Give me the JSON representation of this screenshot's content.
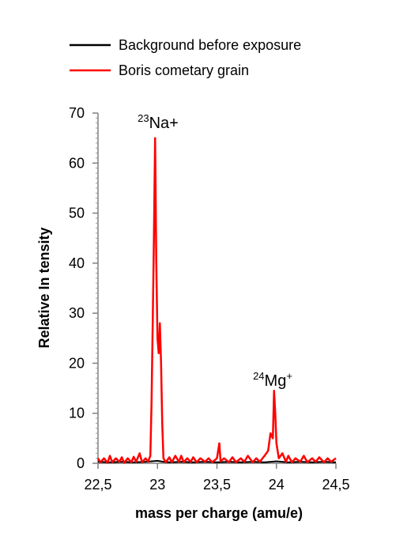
{
  "chart_data": {
    "type": "line",
    "xlabel": "mass per charge (amu/e)",
    "ylabel": "Relative In tensity",
    "xlim": [
      22.5,
      24.5
    ],
    "ylim": [
      0,
      70
    ],
    "x_ticks": [
      22.5,
      23,
      23.5,
      24,
      24.5
    ],
    "x_tick_labels": [
      "22,5",
      "23",
      "23,5",
      "24",
      "24,5"
    ],
    "y_ticks": [
      0,
      10,
      20,
      30,
      40,
      50,
      60,
      70
    ],
    "y_tick_labels": [
      "0",
      "10",
      "20",
      "30",
      "40",
      "50",
      "60",
      "70"
    ],
    "grid": false,
    "legend_position": "top",
    "annotations": [
      {
        "sup": "23",
        "text": "Na+",
        "x": 23.0,
        "y": 66
      },
      {
        "sup": "24",
        "text": "Mg",
        "sup_after": "+",
        "x": 23.98,
        "y": 15
      }
    ],
    "series": [
      {
        "name": "Background before exposure",
        "color": "#000000",
        "points": [
          [
            22.5,
            0.3
          ],
          [
            22.6,
            0.2
          ],
          [
            22.7,
            0.3
          ],
          [
            22.8,
            0.2
          ],
          [
            22.9,
            0.3
          ],
          [
            23.0,
            0.5
          ],
          [
            23.05,
            0.3
          ],
          [
            23.1,
            0.2
          ],
          [
            23.2,
            0.3
          ],
          [
            23.3,
            0.2
          ],
          [
            23.4,
            0.3
          ],
          [
            23.5,
            0.2
          ],
          [
            23.6,
            0.3
          ],
          [
            23.7,
            0.2
          ],
          [
            23.8,
            0.3
          ],
          [
            23.9,
            0.2
          ],
          [
            24.0,
            0.4
          ],
          [
            24.1,
            0.2
          ],
          [
            24.2,
            0.3
          ],
          [
            24.3,
            0.2
          ],
          [
            24.4,
            0.3
          ],
          [
            24.5,
            0.2
          ]
        ]
      },
      {
        "name": "Boris cometary grain",
        "color": "#ff0000",
        "points": [
          [
            22.5,
            1.0
          ],
          [
            22.52,
            0.2
          ],
          [
            22.55,
            1.0
          ],
          [
            22.58,
            0.1
          ],
          [
            22.6,
            1.5
          ],
          [
            22.62,
            0.2
          ],
          [
            22.65,
            1.0
          ],
          [
            22.68,
            0.3
          ],
          [
            22.7,
            1.2
          ],
          [
            22.72,
            0.1
          ],
          [
            22.75,
            1.0
          ],
          [
            22.78,
            0.2
          ],
          [
            22.8,
            1.3
          ],
          [
            22.82,
            0.3
          ],
          [
            22.85,
            2.0
          ],
          [
            22.87,
            0.2
          ],
          [
            22.9,
            1.0
          ],
          [
            22.92,
            0.3
          ],
          [
            22.94,
            1.5
          ],
          [
            22.95,
            12.0
          ],
          [
            22.96,
            28.0
          ],
          [
            22.97,
            45.0
          ],
          [
            22.98,
            65.0
          ],
          [
            22.99,
            40.0
          ],
          [
            23.0,
            25.0
          ],
          [
            23.01,
            22.0
          ],
          [
            23.02,
            28.0
          ],
          [
            23.03,
            20.0
          ],
          [
            23.04,
            8.0
          ],
          [
            23.05,
            1.0
          ],
          [
            23.07,
            0.2
          ],
          [
            23.1,
            1.2
          ],
          [
            23.12,
            0.2
          ],
          [
            23.15,
            1.5
          ],
          [
            23.18,
            0.3
          ],
          [
            23.2,
            1.5
          ],
          [
            23.22,
            0.2
          ],
          [
            23.25,
            1.0
          ],
          [
            23.28,
            0.3
          ],
          [
            23.3,
            1.2
          ],
          [
            23.33,
            0.2
          ],
          [
            23.36,
            1.0
          ],
          [
            23.4,
            0.3
          ],
          [
            23.43,
            1.0
          ],
          [
            23.46,
            0.2
          ],
          [
            23.5,
            1.0
          ],
          [
            23.52,
            4.0
          ],
          [
            23.53,
            0.4
          ],
          [
            23.56,
            1.0
          ],
          [
            23.6,
            0.2
          ],
          [
            23.63,
            1.2
          ],
          [
            23.66,
            0.2
          ],
          [
            23.7,
            1.0
          ],
          [
            23.73,
            0.3
          ],
          [
            23.76,
            1.5
          ],
          [
            23.8,
            0.2
          ],
          [
            23.83,
            1.0
          ],
          [
            23.86,
            0.3
          ],
          [
            23.9,
            1.5
          ],
          [
            23.93,
            2.5
          ],
          [
            23.95,
            6.0
          ],
          [
            23.97,
            5.0
          ],
          [
            23.98,
            14.5
          ],
          [
            23.99,
            10.0
          ],
          [
            24.0,
            4.0
          ],
          [
            24.02,
            1.0
          ],
          [
            24.05,
            2.0
          ],
          [
            24.08,
            0.3
          ],
          [
            24.1,
            1.5
          ],
          [
            24.13,
            0.2
          ],
          [
            24.16,
            1.0
          ],
          [
            24.2,
            0.3
          ],
          [
            24.23,
            1.5
          ],
          [
            24.26,
            0.2
          ],
          [
            24.3,
            1.0
          ],
          [
            24.33,
            0.3
          ],
          [
            24.36,
            1.2
          ],
          [
            24.4,
            0.2
          ],
          [
            24.43,
            1.0
          ],
          [
            24.46,
            0.3
          ],
          [
            24.5,
            1.0
          ]
        ]
      }
    ]
  }
}
